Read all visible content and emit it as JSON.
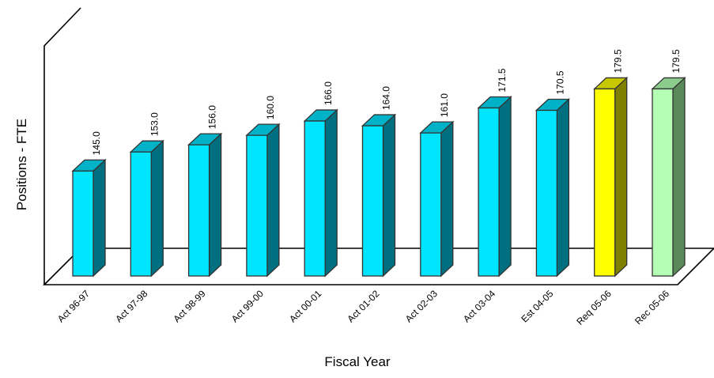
{
  "chart_data": {
    "type": "bar",
    "title": "",
    "xlabel": "Fiscal Year",
    "ylabel": "Positions - FTE",
    "categories": [
      "Act 96-97",
      "Act 97-98",
      "Act 98-99",
      "Act 99-00",
      "Act 00-01",
      "Act 01-02",
      "Act 02-03",
      "Act 03-04",
      "Est 04-05",
      "Req 05-06",
      "Rec 05-06"
    ],
    "values": [
      145.0,
      153.0,
      156.0,
      160.0,
      166.0,
      164.0,
      161.0,
      171.5,
      170.5,
      179.5,
      179.5
    ],
    "data_labels": [
      "145.0",
      "153.0",
      "156.0",
      "160.0",
      "166.0",
      "164.0",
      "161.0",
      "171.5",
      "170.5",
      "179.5",
      "179.5"
    ],
    "bar_colors": [
      {
        "front": "#00e5ff",
        "top": "#00b2c8",
        "side": "#007080"
      },
      {
        "front": "#00e5ff",
        "top": "#00b2c8",
        "side": "#007080"
      },
      {
        "front": "#00e5ff",
        "top": "#00b2c8",
        "side": "#007080"
      },
      {
        "front": "#00e5ff",
        "top": "#00b2c8",
        "side": "#007080"
      },
      {
        "front": "#00e5ff",
        "top": "#00b2c8",
        "side": "#007080"
      },
      {
        "front": "#00e5ff",
        "top": "#00b2c8",
        "side": "#007080"
      },
      {
        "front": "#00e5ff",
        "top": "#00b2c8",
        "side": "#007080"
      },
      {
        "front": "#00e5ff",
        "top": "#00b2c8",
        "side": "#007080"
      },
      {
        "front": "#00e5ff",
        "top": "#00b2c8",
        "side": "#007080"
      },
      {
        "front": "#ffff00",
        "top": "#c8c800",
        "side": "#808000"
      },
      {
        "front": "#b4ffb4",
        "top": "#8ccc8c",
        "side": "#5a8a5a"
      }
    ],
    "style": "3d-column",
    "gridlines": false,
    "legend": "none",
    "y_axis_labels_shown": false
  }
}
